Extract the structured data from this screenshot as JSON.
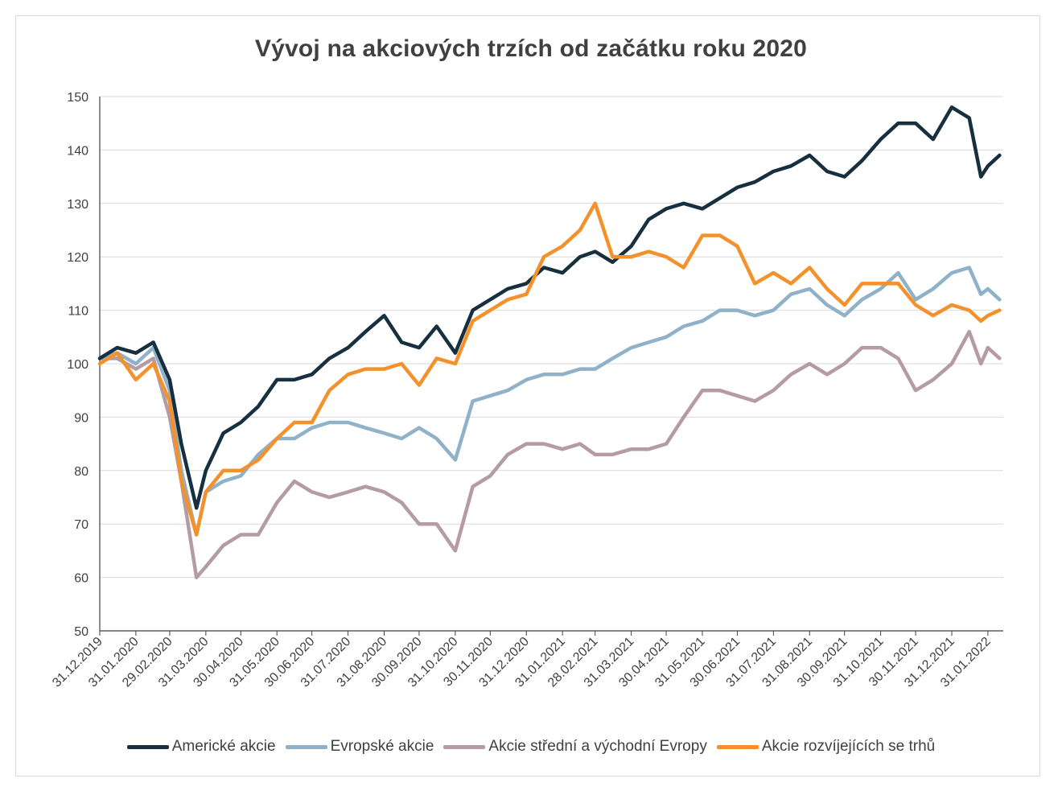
{
  "chart_data": {
    "type": "line",
    "title": "Vývoj na akciových trzích od začátku roku 2020",
    "xlabel": "",
    "ylabel": "",
    "ylim": [
      50,
      150
    ],
    "yticks": [
      50,
      60,
      70,
      80,
      90,
      100,
      110,
      120,
      130,
      140,
      150
    ],
    "grid": "horizontal",
    "legend_position": "bottom",
    "x_tick_labels": [
      "31.12.2019",
      "31.01.2020",
      "29.02.2020",
      "31.03.2020",
      "30.04.2020",
      "31.05.2020",
      "30.06.2020",
      "31.07.2020",
      "31.08.2020",
      "30.09.2020",
      "31.10.2020",
      "30.11.2020",
      "31.12.2020",
      "31.01.2021",
      "28.02.2021",
      "31.03.2021",
      "30.04.2021",
      "31.05.2021",
      "30.06.2021",
      "31.07.2021",
      "31.08.2021",
      "30.09.2021",
      "31.10.2021",
      "30.11.2021",
      "31.12.2021",
      "31.01.2022"
    ],
    "x": [
      "31.12.2019",
      "15.01.2020",
      "31.01.2020",
      "15.02.2020",
      "29.02.2020",
      "10.03.2020",
      "23.03.2020",
      "31.03.2020",
      "15.04.2020",
      "30.04.2020",
      "15.05.2020",
      "31.05.2020",
      "15.06.2020",
      "30.06.2020",
      "15.07.2020",
      "31.07.2020",
      "15.08.2020",
      "31.08.2020",
      "15.09.2020",
      "30.09.2020",
      "15.10.2020",
      "31.10.2020",
      "15.11.2020",
      "30.11.2020",
      "15.12.2020",
      "31.12.2020",
      "15.01.2021",
      "31.01.2021",
      "15.02.2021",
      "28.02.2021",
      "15.03.2021",
      "31.03.2021",
      "15.04.2021",
      "30.04.2021",
      "15.05.2021",
      "31.05.2021",
      "15.06.2021",
      "30.06.2021",
      "15.07.2021",
      "31.07.2021",
      "15.08.2021",
      "31.08.2021",
      "15.09.2021",
      "30.09.2021",
      "15.10.2021",
      "31.10.2021",
      "15.11.2021",
      "30.11.2021",
      "15.12.2021",
      "31.12.2021",
      "15.01.2022",
      "25.01.2022",
      "31.01.2022",
      "10.02.2022"
    ],
    "series": [
      {
        "name": "Americké akcie",
        "color": "#17303f",
        "values": [
          101,
          103,
          102,
          104,
          97,
          85,
          73,
          80,
          87,
          89,
          92,
          97,
          97,
          98,
          101,
          103,
          106,
          109,
          104,
          103,
          107,
          102,
          110,
          112,
          114,
          115,
          118,
          117,
          120,
          121,
          119,
          122,
          127,
          129,
          130,
          129,
          131,
          133,
          134,
          136,
          137,
          139,
          136,
          135,
          138,
          142,
          145,
          145,
          142,
          148,
          146,
          135,
          137,
          139
        ]
      },
      {
        "name": "Evropské akcie",
        "color": "#8fb2c9",
        "values": [
          101,
          102,
          100,
          103,
          95,
          80,
          68,
          76,
          78,
          79,
          83,
          86,
          86,
          88,
          89,
          89,
          88,
          87,
          86,
          88,
          86,
          82,
          93,
          94,
          95,
          97,
          98,
          98,
          99,
          99,
          101,
          103,
          104,
          105,
          107,
          108,
          110,
          110,
          109,
          110,
          113,
          114,
          111,
          109,
          112,
          114,
          117,
          112,
          114,
          117,
          118,
          113,
          114,
          112
        ]
      },
      {
        "name": "Akcie střední a východní Evropy",
        "color": "#b59ca3",
        "values": [
          101,
          101,
          99,
          101,
          90,
          78,
          60,
          62,
          66,
          68,
          68,
          74,
          78,
          76,
          75,
          76,
          77,
          76,
          74,
          70,
          70,
          65,
          77,
          79,
          83,
          85,
          85,
          84,
          85,
          83,
          83,
          84,
          84,
          85,
          90,
          95,
          95,
          94,
          93,
          95,
          98,
          100,
          98,
          100,
          103,
          103,
          101,
          95,
          97,
          100,
          106,
          100,
          103,
          101
        ]
      },
      {
        "name": "Akcie rozvíjejících se trhů",
        "color": "#f3922d",
        "values": [
          100,
          102,
          97,
          100,
          93,
          78,
          68,
          76,
          80,
          80,
          82,
          86,
          89,
          89,
          95,
          98,
          99,
          99,
          100,
          96,
          101,
          100,
          108,
          110,
          112,
          113,
          120,
          122,
          125,
          130,
          120,
          120,
          121,
          120,
          118,
          124,
          124,
          122,
          115,
          117,
          115,
          118,
          114,
          111,
          115,
          115,
          115,
          111,
          109,
          111,
          110,
          108,
          109,
          110
        ]
      }
    ]
  }
}
